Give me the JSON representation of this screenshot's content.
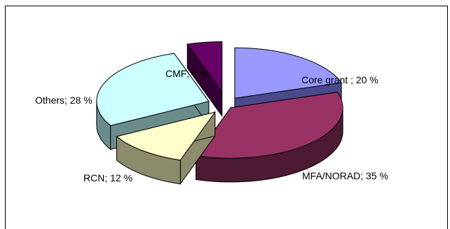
{
  "chart_data": {
    "type": "pie",
    "style": "3d-exploded",
    "slices": [
      {
        "name": "Core grant",
        "value": 20,
        "label": "Core grant ; 20 %",
        "top": "#9999ff",
        "side": "#4a4a8c"
      },
      {
        "name": "MFA/NORAD",
        "value": 35,
        "label": "MFA/NORAD; 35 %",
        "top": "#993366",
        "side": "#4d1a33"
      },
      {
        "name": "RCN",
        "value": 12,
        "label": "RCN; 12 %",
        "top": "#ffffcc",
        "side": "#8c8c6c"
      },
      {
        "name": "Others",
        "value": 28,
        "label": "Others; 28 %",
        "top": "#ccffff",
        "side": "#6c8c8c"
      },
      {
        "name": "CMF",
        "value": 5,
        "label": "CMF; 5 %",
        "top": "#660066",
        "side": "#330033"
      }
    ]
  }
}
